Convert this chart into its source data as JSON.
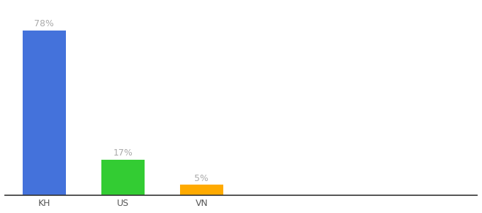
{
  "categories": [
    "KH",
    "US",
    "VN"
  ],
  "values": [
    78,
    17,
    5
  ],
  "labels": [
    "78%",
    "17%",
    "5%"
  ],
  "bar_colors": [
    "#4472db",
    "#33cc33",
    "#ffaa00"
  ],
  "background_color": "#ffffff",
  "text_color": "#aaaaaa",
  "label_fontsize": 9,
  "tick_fontsize": 9,
  "ylim": [
    0,
    90
  ],
  "bar_width": 0.55,
  "x_positions": [
    0,
    1,
    2
  ],
  "xlim": [
    -0.5,
    5.5
  ]
}
